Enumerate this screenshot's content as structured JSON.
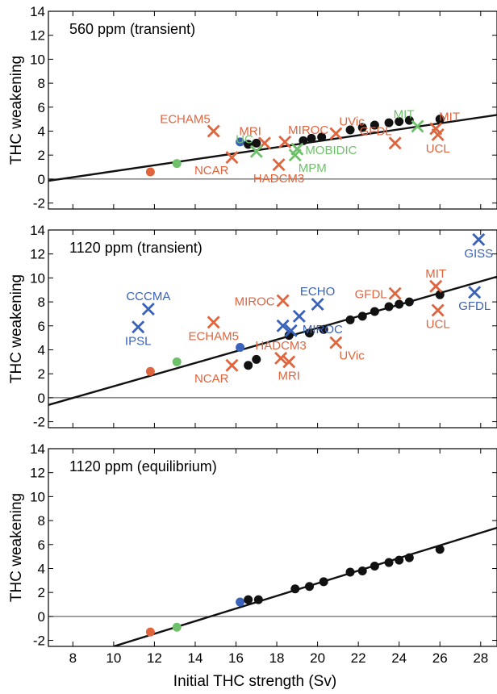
{
  "colors": {
    "black": "#111111",
    "orange": "#e0643c",
    "green": "#6fc06a",
    "blue": "#3a62b8",
    "axis": "#000000",
    "zero_line": "#444444"
  },
  "chart_data": [
    {
      "type": "scatter",
      "title": "560 ppm (transient)",
      "ylabel": "THC weakening",
      "xlabel": "",
      "xlim": [
        6.8,
        28.8
      ],
      "ylim": [
        -2.5,
        14
      ],
      "yticks": [
        "-2",
        "0",
        "2",
        "4",
        "6",
        "8",
        "10",
        "12",
        "14"
      ],
      "xticks": [
        "8",
        "10",
        "12",
        "14",
        "16",
        "18",
        "20",
        "22",
        "24",
        "26",
        "28"
      ],
      "show_xticklabels": false,
      "zero_line": true,
      "regression_line": {
        "x": [
          6.8,
          28.8
        ],
        "y": [
          -0.15,
          5.35
        ]
      },
      "dot_series": [
        {
          "color": "orange",
          "points": [
            [
              11.8,
              0.6
            ]
          ]
        },
        {
          "color": "green",
          "points": [
            [
              13.1,
              1.3
            ]
          ]
        },
        {
          "color": "blue",
          "points": [
            [
              16.2,
              3.1
            ]
          ]
        },
        {
          "color": "black",
          "points": [
            [
              16.6,
              2.9
            ],
            [
              17.0,
              3.0
            ],
            [
              19.3,
              3.2
            ],
            [
              19.7,
              3.4
            ],
            [
              20.2,
              3.5
            ],
            [
              21.6,
              4.1
            ],
            [
              22.2,
              4.3
            ],
            [
              22.8,
              4.5
            ],
            [
              23.5,
              4.7
            ],
            [
              24.0,
              4.8
            ],
            [
              24.5,
              4.9
            ],
            [
              26.0,
              5.0
            ]
          ]
        }
      ],
      "cross_series": [
        {
          "color": "orange",
          "points": [
            {
              "x": 14.9,
              "y": 4.0,
              "label": "ECHAM5",
              "pos": "tl"
            },
            {
              "x": 17.4,
              "y": 3.0,
              "label": "MRI",
              "pos": "tl"
            },
            {
              "x": 15.8,
              "y": 1.8,
              "label": "NCAR",
              "pos": "bl"
            },
            {
              "x": 18.1,
              "y": 1.2,
              "label": "HADCM3",
              "pos": "b"
            },
            {
              "x": 18.4,
              "y": 3.1,
              "label": "MIROC",
              "pos": "tr"
            },
            {
              "x": 20.9,
              "y": 3.8,
              "label": "UVic",
              "pos": "tr"
            },
            {
              "x": 23.8,
              "y": 3.0,
              "label": "GFDL",
              "pos": "tl"
            },
            {
              "x": 25.8,
              "y": 4.2,
              "label": "MIT",
              "pos": "tr"
            },
            {
              "x": 25.9,
              "y": 3.7,
              "label": "UCL",
              "pos": "b"
            }
          ]
        },
        {
          "color": "green",
          "points": [
            {
              "x": 17.0,
              "y": 2.3,
              "label": "UC",
              "pos": "tl"
            },
            {
              "x": 19.0,
              "y": 2.5,
              "label": "MOBIDIC",
              "pos": "r"
            },
            {
              "x": 18.9,
              "y": 2.0,
              "label": "MPM",
              "pos": "br"
            },
            {
              "x": 24.9,
              "y": 4.4,
              "label": "MIT",
              "pos": "tl"
            }
          ]
        }
      ]
    },
    {
      "type": "scatter",
      "title": "1120 ppm (transient)",
      "ylabel": "THC weakening",
      "xlabel": "",
      "xlim": [
        6.8,
        28.8
      ],
      "ylim": [
        -2.5,
        14
      ],
      "yticks": [
        "-2",
        "0",
        "2",
        "4",
        "6",
        "8",
        "10",
        "12",
        "14"
      ],
      "xticks": [
        "8",
        "10",
        "12",
        "14",
        "16",
        "18",
        "20",
        "22",
        "24",
        "26",
        "28"
      ],
      "show_xticklabels": false,
      "zero_line": true,
      "regression_line": {
        "x": [
          6.8,
          28.8
        ],
        "y": [
          -0.6,
          10.1
        ]
      },
      "dot_series": [
        {
          "color": "orange",
          "points": [
            [
              11.8,
              2.2
            ]
          ]
        },
        {
          "color": "green",
          "points": [
            [
              13.1,
              3.0
            ]
          ]
        },
        {
          "color": "blue",
          "points": [
            [
              16.2,
              4.2
            ]
          ]
        },
        {
          "color": "black",
          "points": [
            [
              16.6,
              2.7
            ],
            [
              17.0,
              3.2
            ],
            [
              18.6,
              5.2
            ],
            [
              19.6,
              5.4
            ],
            [
              20.3,
              5.7
            ],
            [
              21.6,
              6.5
            ],
            [
              22.2,
              6.8
            ],
            [
              22.8,
              7.2
            ],
            [
              23.5,
              7.6
            ],
            [
              24.0,
              7.8
            ],
            [
              24.5,
              8.0
            ],
            [
              26.0,
              8.6
            ]
          ]
        }
      ],
      "cross_series": [
        {
          "color": "orange",
          "points": [
            {
              "x": 14.9,
              "y": 6.3,
              "label": "ECHAM5",
              "pos": "b"
            },
            {
              "x": 15.8,
              "y": 2.7,
              "label": "NCAR",
              "pos": "bl"
            },
            {
              "x": 18.3,
              "y": 8.1,
              "label": "MIROC",
              "pos": "l"
            },
            {
              "x": 18.2,
              "y": 3.3,
              "label": "HADCM3",
              "pos": "t"
            },
            {
              "x": 18.6,
              "y": 3.0,
              "label": "MRI",
              "pos": "b"
            },
            {
              "x": 20.9,
              "y": 4.6,
              "label": "UVic",
              "pos": "br"
            },
            {
              "x": 23.8,
              "y": 8.7,
              "label": "GFDL",
              "pos": "l"
            },
            {
              "x": 25.8,
              "y": 9.3,
              "label": "MIT",
              "pos": "t"
            },
            {
              "x": 25.9,
              "y": 7.3,
              "label": "UCL",
              "pos": "b"
            }
          ]
        },
        {
          "color": "blue",
          "points": [
            {
              "x": 11.7,
              "y": 7.4,
              "label": "CCCMA",
              "pos": "t"
            },
            {
              "x": 11.2,
              "y": 5.9,
              "label": "IPSL",
              "pos": "b"
            },
            {
              "x": 18.3,
              "y": 6.0,
              "label": "",
              "pos": "t"
            },
            {
              "x": 18.7,
              "y": 5.6,
              "label": "",
              "pos": "t"
            },
            {
              "x": 19.1,
              "y": 6.8,
              "label": "MIROC",
              "pos": "br"
            },
            {
              "x": 20.0,
              "y": 7.8,
              "label": "ECHO",
              "pos": "t"
            },
            {
              "x": 27.9,
              "y": 13.2,
              "label": "GISS",
              "pos": "b"
            },
            {
              "x": 27.7,
              "y": 8.8,
              "label": "GFDL",
              "pos": "b"
            }
          ]
        }
      ]
    },
    {
      "type": "scatter",
      "title": "1120 ppm (equilibrium)",
      "ylabel": "THC weakening",
      "xlabel": "Initial THC strength (Sv)",
      "xlim": [
        6.8,
        28.8
      ],
      "ylim": [
        -2.5,
        14
      ],
      "yticks": [
        "-2",
        "0",
        "2",
        "4",
        "6",
        "8",
        "10",
        "12",
        "14"
      ],
      "xticks": [
        "8",
        "10",
        "12",
        "14",
        "16",
        "18",
        "20",
        "22",
        "24",
        "26",
        "28"
      ],
      "show_xticklabels": true,
      "zero_line": true,
      "regression_line": {
        "x": [
          10.0,
          28.8
        ],
        "y": [
          -2.5,
          7.4
        ]
      },
      "dot_series": [
        {
          "color": "orange",
          "points": [
            [
              11.8,
              -1.3
            ]
          ]
        },
        {
          "color": "green",
          "points": [
            [
              13.1,
              -0.9
            ]
          ]
        },
        {
          "color": "blue",
          "points": [
            [
              16.2,
              1.2
            ]
          ]
        },
        {
          "color": "black",
          "points": [
            [
              16.6,
              1.4
            ],
            [
              17.1,
              1.4
            ],
            [
              18.9,
              2.3
            ],
            [
              19.6,
              2.5
            ],
            [
              20.3,
              2.9
            ],
            [
              21.6,
              3.7
            ],
            [
              22.2,
              3.8
            ],
            [
              22.8,
              4.2
            ],
            [
              23.5,
              4.5
            ],
            [
              24.0,
              4.7
            ],
            [
              24.5,
              4.9
            ],
            [
              26.0,
              5.6
            ]
          ]
        }
      ],
      "cross_series": []
    }
  ]
}
